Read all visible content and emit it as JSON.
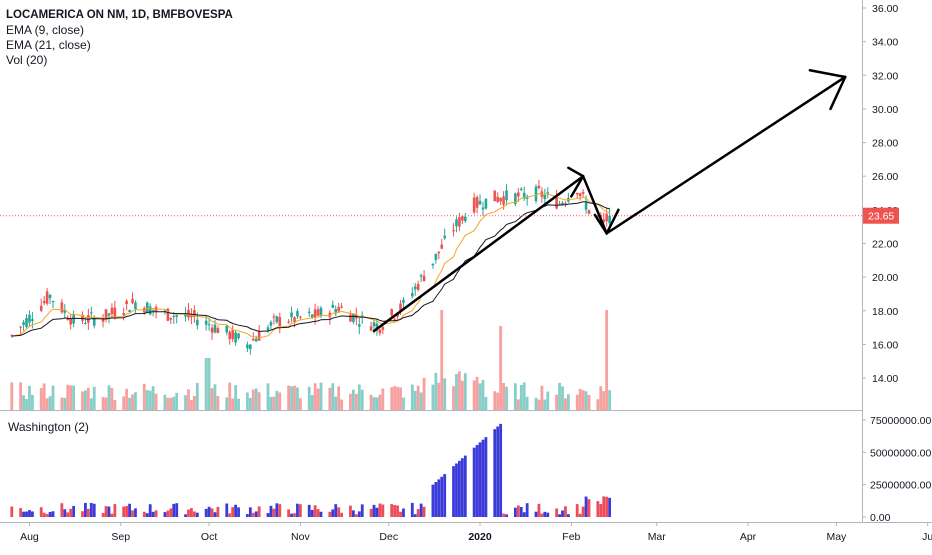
{
  "chart_data": [
    {
      "type": "candlestick",
      "title": "LOCAMERICA ON NM, 1D, BMFBOVESPA",
      "indicators": [
        "EMA (9, close)",
        "EMA (21, close)",
        "Vol (20)"
      ],
      "last_price": 23.65,
      "y_ticks": [
        "36.00",
        "34.00",
        "32.00",
        "30.00",
        "28.00",
        "26.00",
        "24.00",
        "22.00",
        "20.00",
        "18.00",
        "16.00",
        "14.00"
      ],
      "ylim": [
        12.4,
        36.5
      ],
      "x_ticks": [
        "Aug",
        "Sep",
        "Oct",
        "Nov",
        "Dec",
        "2020",
        "Feb",
        "Mar",
        "Apr",
        "May",
        "Ju"
      ],
      "anchors": [
        [
          "2019-07-26",
          16.5
        ],
        [
          "2019-08-08",
          18.9
        ],
        [
          "2019-08-16",
          17.4
        ],
        [
          "2019-08-26",
          17.6
        ],
        [
          "2019-09-06",
          18.5
        ],
        [
          "2019-09-16",
          17.8
        ],
        [
          "2019-09-26",
          17.6
        ],
        [
          "2019-10-07",
          16.7
        ],
        [
          "2019-10-14",
          16.0
        ],
        [
          "2019-10-24",
          17.4
        ],
        [
          "2019-11-06",
          17.7
        ],
        [
          "2019-11-14",
          18.2
        ],
        [
          "2019-11-22",
          17.4
        ],
        [
          "2019-11-28",
          17.1
        ],
        [
          "2019-12-06",
          18.3
        ],
        [
          "2019-12-16",
          20.9
        ],
        [
          "2019-12-23",
          22.9
        ],
        [
          "2019-12-30",
          24.3
        ],
        [
          "2020-01-06",
          24.7
        ],
        [
          "2020-01-14",
          24.8
        ],
        [
          "2020-01-21",
          25.0
        ],
        [
          "2020-01-28",
          24.4
        ],
        [
          "2020-02-03",
          25.3
        ],
        [
          "2020-02-07",
          24.0
        ],
        [
          "2020-02-12",
          23.2
        ],
        [
          "2020-02-14",
          23.65
        ]
      ],
      "volume_hint": "moderate bars through Nov, spikes near 2019-12-19 and 2020-02-13"
    },
    {
      "type": "bar",
      "title": "Washington (2)",
      "y_ticks": [
        "75000000.00",
        "50000000.00",
        "25000000.00",
        "0.00"
      ],
      "ylim": [
        0,
        75000000
      ],
      "bar_colors": {
        "blue": "#3b3bd9",
        "red": "#ef4c5a"
      },
      "peak_range": [
        "2019-12-16",
        "2020-01-08"
      ],
      "peak_value": 72000000
    }
  ],
  "annotations": {
    "drawn_arrows": [
      "uptrend Nov→Feb",
      "pullback Feb",
      "projection up to ~32 by May"
    ],
    "price_label_bg": "#ef5350"
  },
  "colors": {
    "up": "#26a69a",
    "down": "#ef5350",
    "ema9": "#f5a623",
    "ema21": "#131722",
    "arrow": "#000000"
  }
}
